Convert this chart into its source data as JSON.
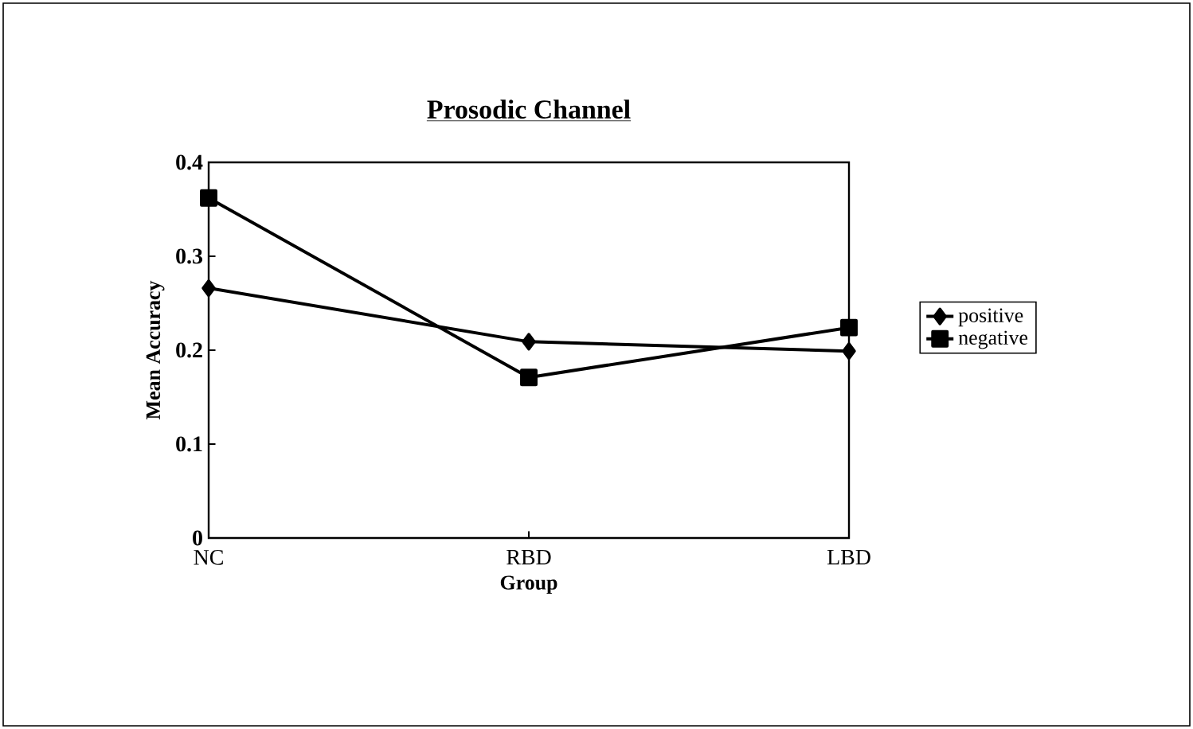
{
  "chart_data": {
    "type": "line",
    "title": "Prosodic Channel",
    "xlabel": "Group",
    "ylabel": "Mean Accuracy",
    "categories": [
      "NC",
      "RBD",
      "LBD"
    ],
    "ylim": [
      0,
      0.4
    ],
    "yticks": [
      0,
      0.1,
      0.2,
      0.3,
      0.4
    ],
    "legend": "right",
    "grid": false,
    "line_style": "solid",
    "series": [
      {
        "name": "positive",
        "color": "#000000",
        "marker": "diamond",
        "values": [
          0.266,
          0.209,
          0.199
        ]
      },
      {
        "name": "negative",
        "color": "#000000",
        "marker": "square",
        "values": [
          0.362,
          0.171,
          0.224
        ]
      }
    ]
  }
}
